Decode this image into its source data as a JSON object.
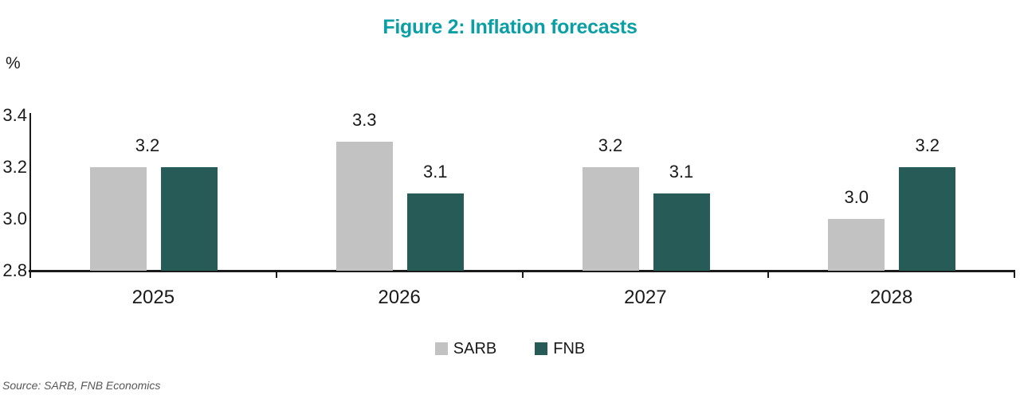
{
  "title": "Figure 2: Inflation forecasts",
  "source_note": "Source: SARB, FNB Economics",
  "colors": {
    "title": "#0a9fa4",
    "sarb_bar": "#c2c2c2",
    "fnb_bar": "#265b58",
    "axis": "#1a1a1a",
    "label_text": "#1a1a1a",
    "source_text": "#575757",
    "background": "#ffffff"
  },
  "legend": {
    "items": [
      {
        "label": "SARB",
        "color": "#c2c2c2"
      },
      {
        "label": "FNB",
        "color": "#265b58"
      }
    ]
  },
  "chart_data": {
    "type": "bar",
    "title": "Figure 2: Inflation forecasts",
    "categories": [
      "2025",
      "2026",
      "2027",
      "2028"
    ],
    "series": [
      {
        "name": "SARB",
        "color": "#c2c2c2",
        "values": [
          3.2,
          3.3,
          3.2,
          3.0
        ]
      },
      {
        "name": "FNB",
        "color": "#265b58",
        "values": [
          3.2,
          3.1,
          3.1,
          3.2
        ]
      }
    ],
    "xlabel": "",
    "ylabel": "%",
    "ylim": [
      2.8,
      3.4
    ],
    "yticks": [
      2.8,
      3.0,
      3.2,
      3.4
    ],
    "grid": false,
    "legend_position": "bottom",
    "data_labels": true,
    "data_label_format": "one decimal",
    "shared_label_note": "2025 shows a single 3.2 label because both series are equal"
  }
}
